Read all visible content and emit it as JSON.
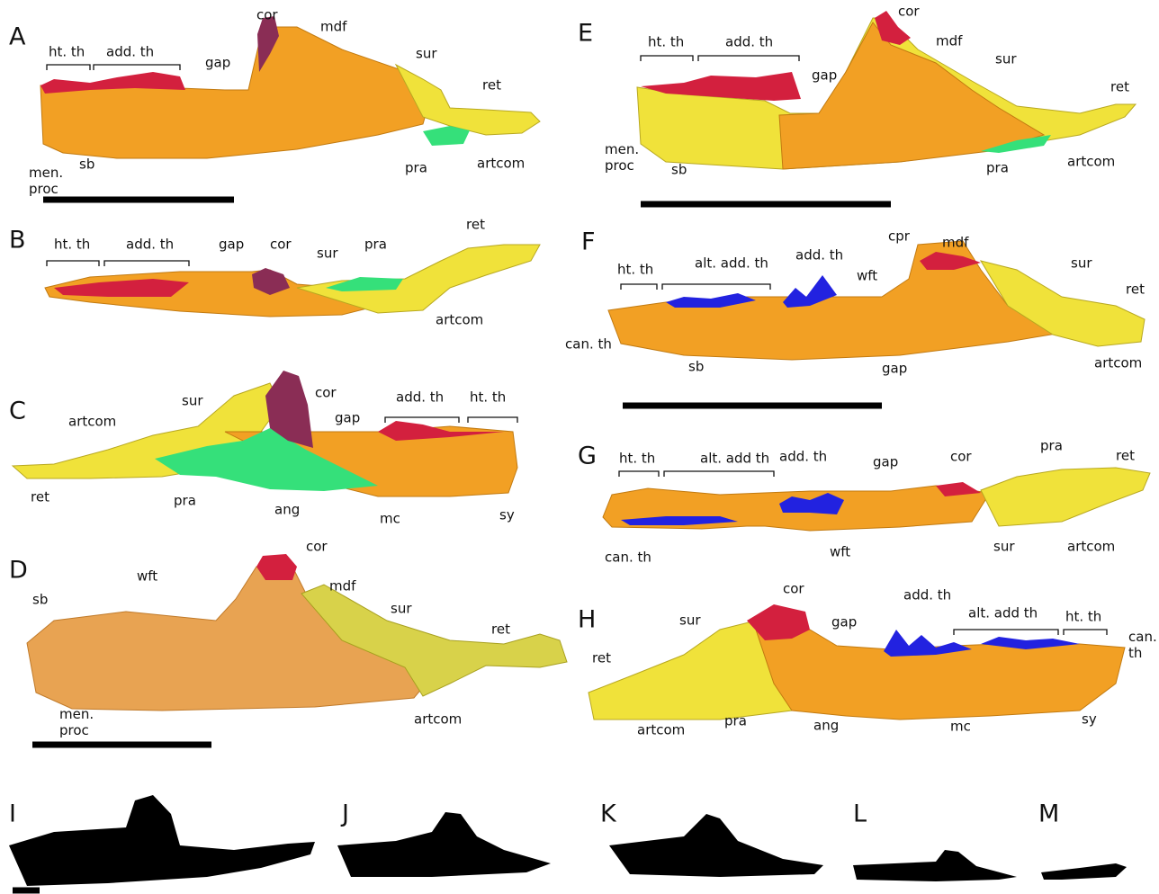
{
  "panels": [
    {
      "letter": "A",
      "labels": [
        "ht. th",
        "add. th",
        "cor",
        "mdf",
        "gap",
        "sur",
        "ret",
        "men. proc",
        "sb",
        "pra",
        "artcom"
      ]
    },
    {
      "letter": "B",
      "labels": [
        "ht. th",
        "add. th",
        "gap",
        "cor",
        "sur",
        "pra",
        "ret",
        "artcom"
      ]
    },
    {
      "letter": "C",
      "labels": [
        "sur",
        "artcom",
        "cor",
        "gap",
        "add. th",
        "ht. th",
        "ret",
        "pra",
        "ang",
        "mc",
        "sy"
      ]
    },
    {
      "letter": "D",
      "labels": [
        "cor",
        "wft",
        "mdf",
        "sur",
        "ret",
        "sb",
        "men. proc",
        "artcom"
      ]
    },
    {
      "letter": "E",
      "labels": [
        "ht. th",
        "add. th",
        "cor",
        "mdf",
        "gap",
        "sur",
        "ret",
        "men. proc",
        "sb",
        "pra",
        "artcom"
      ]
    },
    {
      "letter": "F",
      "labels": [
        "ht. th",
        "alt. add. th",
        "add. th",
        "cpr",
        "mdf",
        "wft",
        "sur",
        "ret",
        "can. th",
        "sb",
        "gap",
        "artcom"
      ]
    },
    {
      "letter": "G",
      "labels": [
        "ht. th",
        "alt. add th",
        "add. th",
        "gap",
        "cor",
        "pra",
        "ret",
        "can. th",
        "wft",
        "sur",
        "artcom"
      ]
    },
    {
      "letter": "H",
      "labels": [
        "cor",
        "sur",
        "gap",
        "add. th",
        "alt. add th",
        "ht. th",
        "can. th",
        "ret",
        "artcom",
        "pra",
        "ang",
        "mc",
        "sy"
      ]
    },
    {
      "letter": "I",
      "labels": []
    },
    {
      "letter": "J",
      "labels": []
    },
    {
      "letter": "K",
      "labels": []
    },
    {
      "letter": "L",
      "labels": []
    },
    {
      "letter": "M",
      "labels": []
    }
  ]
}
